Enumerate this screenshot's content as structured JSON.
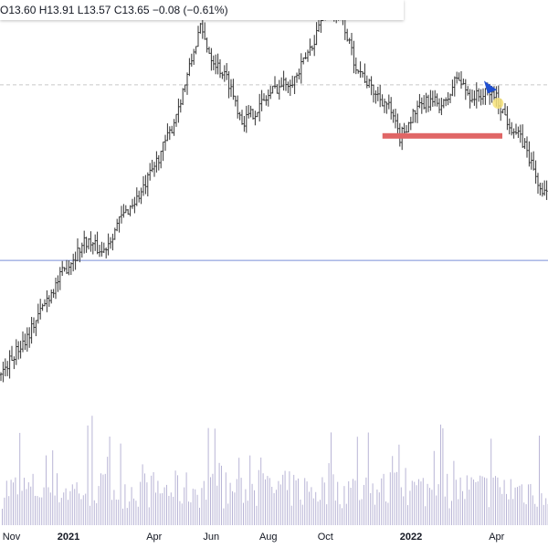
{
  "legend": {
    "open": "O13.60",
    "high": "H13.91",
    "low": "L13.57",
    "close": "C13.65",
    "change": "−0.08 (−0.61%)"
  },
  "x_axis_labels": [
    {
      "text": "Nov",
      "bold": false,
      "month_index": 0
    },
    {
      "text": "2021",
      "bold": true,
      "month_index": 2
    },
    {
      "text": "Apr",
      "bold": false,
      "month_index": 5
    },
    {
      "text": "Jun",
      "bold": false,
      "month_index": 7
    },
    {
      "text": "Aug",
      "bold": false,
      "month_index": 9
    },
    {
      "text": "Oct",
      "bold": false,
      "month_index": 11
    },
    {
      "text": "2022",
      "bold": true,
      "month_index": 14
    },
    {
      "text": "Apr",
      "bold": false,
      "month_index": 17
    }
  ],
  "chart_data": {
    "type": "line",
    "style": "ohlc-bars-with-volume",
    "x_start": "2020-10",
    "x_end": "2022-05",
    "price_path": [
      [
        0,
        0.1
      ],
      [
        1.0,
        0.2
      ],
      [
        1.6,
        0.28
      ],
      [
        2.2,
        0.35
      ],
      [
        3.0,
        0.43
      ],
      [
        3.6,
        0.4
      ],
      [
        4.2,
        0.48
      ],
      [
        5.0,
        0.55
      ],
      [
        6.0,
        0.7
      ],
      [
        6.6,
        0.84
      ],
      [
        7.0,
        0.95
      ],
      [
        7.4,
        0.88
      ],
      [
        8.0,
        0.82
      ],
      [
        8.5,
        0.72
      ],
      [
        9.0,
        0.75
      ],
      [
        9.6,
        0.8
      ],
      [
        10.4,
        0.83
      ],
      [
        11.0,
        0.92
      ],
      [
        11.4,
        1.0
      ],
      [
        12.0,
        0.97
      ],
      [
        12.4,
        0.87
      ],
      [
        13.0,
        0.8
      ],
      [
        13.6,
        0.76
      ],
      [
        14.0,
        0.68
      ],
      [
        14.5,
        0.74
      ],
      [
        15.0,
        0.77
      ],
      [
        15.6,
        0.76
      ],
      [
        16.0,
        0.83
      ],
      [
        16.5,
        0.78
      ],
      [
        17.3,
        0.79
      ],
      [
        17.8,
        0.72
      ],
      [
        18.4,
        0.66
      ],
      [
        19.0,
        0.54
      ]
    ],
    "horizontal_lines": [
      {
        "style": "dashed",
        "color": "#c8c8c8",
        "level": 0.81
      },
      {
        "style": "solid",
        "color": "#7b8fd6",
        "level": 0.38
      }
    ],
    "support_zone": {
      "color": "#e06666",
      "x_from": 13.4,
      "x_to": 17.6,
      "level": 0.685
    },
    "markers": [
      {
        "shape": "flag",
        "color": "#1f4fd1",
        "x": 17.15,
        "level": 0.8
      },
      {
        "shape": "dot",
        "color": "#f7e37a",
        "x": 17.45,
        "level": 0.765
      }
    ],
    "volume_color": "#b9b5d6",
    "price_color": "#333333"
  }
}
